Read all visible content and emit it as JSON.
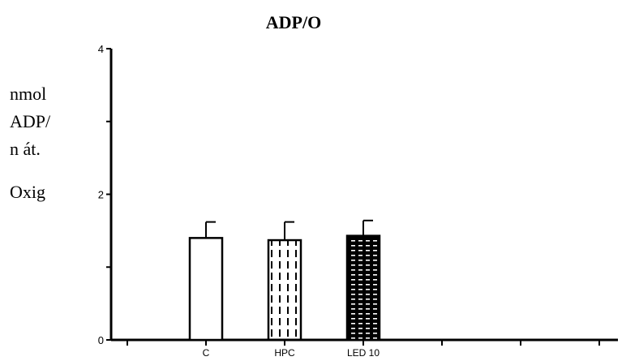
{
  "chart_data": {
    "type": "bar",
    "title": "ADP/O",
    "ylabel_lines": [
      "nmol",
      "ADP/",
      "n át.",
      "Oxig"
    ],
    "xlabel": "",
    "categories": [
      "C",
      "HPC",
      "LED 10"
    ],
    "values": [
      1.4,
      1.37,
      1.43
    ],
    "errors": [
      0.22,
      0.25,
      0.21
    ],
    "fills": [
      "plain",
      "dashed",
      "dotted-black"
    ],
    "ylim": [
      0,
      4
    ],
    "yticks": [
      0,
      2,
      4
    ],
    "xlim": [
      -1,
      6
    ],
    "grid": false,
    "legend": "none",
    "colors": {
      "axis": "#000000",
      "bar_edge": "#000000",
      "bar_fill": "#ffffff",
      "dark_fill": "#000000"
    }
  }
}
